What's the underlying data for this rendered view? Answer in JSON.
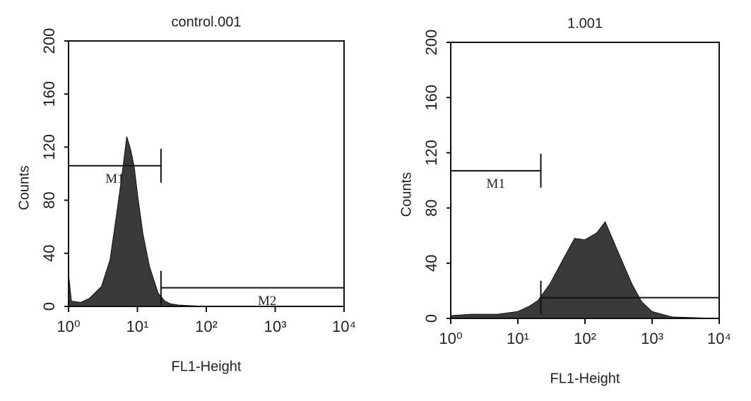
{
  "chart_data": [
    {
      "type": "area",
      "title": "control.001",
      "xlabel": "FL1-Height",
      "ylabel": "Counts",
      "xscale": "log",
      "color": "#3a3a3a",
      "x": [
        1,
        1.1,
        1.5,
        2,
        3,
        4,
        5,
        6,
        7,
        8,
        9,
        10,
        12,
        15,
        20,
        25,
        30,
        40,
        60,
        100,
        1000,
        10000
      ],
      "values": [
        25,
        4,
        3,
        6,
        15,
        35,
        70,
        100,
        128,
        118,
        105,
        85,
        55,
        30,
        10,
        4,
        2,
        1,
        0.5,
        0,
        0,
        0
      ],
      "xlim": [
        1,
        10000
      ],
      "ylim": [
        0,
        200
      ],
      "xticks": [
        {
          "value": 1,
          "label": "10⁰"
        },
        {
          "value": 10,
          "label": "10¹"
        },
        {
          "value": 100,
          "label": "10²"
        },
        {
          "value": 1000,
          "label": "10³"
        },
        {
          "value": 10000,
          "label": "10⁴"
        }
      ],
      "yticks": [
        0,
        40,
        80,
        120,
        160,
        200
      ],
      "gates": [
        {
          "label": "M1",
          "range": [
            1,
            22
          ],
          "y": 106
        },
        {
          "label": "M2",
          "range": [
            22,
            10000
          ],
          "y": 14
        }
      ]
    },
    {
      "type": "area",
      "title": "1.001",
      "xlabel": "FL1-Height",
      "ylabel": "Counts",
      "xscale": "log",
      "color": "#3a3a3a",
      "x": [
        1,
        2,
        5,
        10,
        15,
        20,
        30,
        50,
        70,
        100,
        150,
        200,
        300,
        500,
        700,
        1000,
        2000,
        10000
      ],
      "values": [
        2,
        3,
        3,
        5,
        9,
        13,
        25,
        45,
        58,
        57,
        62,
        70,
        50,
        25,
        12,
        5,
        1,
        0
      ],
      "xlim": [
        1,
        10000
      ],
      "ylim": [
        0,
        200
      ],
      "xticks": [
        {
          "value": 1,
          "label": "10⁰"
        },
        {
          "value": 10,
          "label": "10¹"
        },
        {
          "value": 100,
          "label": "10²"
        },
        {
          "value": 1000,
          "label": "10³"
        },
        {
          "value": 10000,
          "label": "10⁴"
        }
      ],
      "yticks": [
        0,
        40,
        80,
        120,
        160,
        200
      ],
      "gates": [
        {
          "label": "M1",
          "range": [
            1,
            22
          ],
          "y": 107
        },
        {
          "range": [
            22,
            10000
          ],
          "y": 15
        }
      ]
    }
  ]
}
